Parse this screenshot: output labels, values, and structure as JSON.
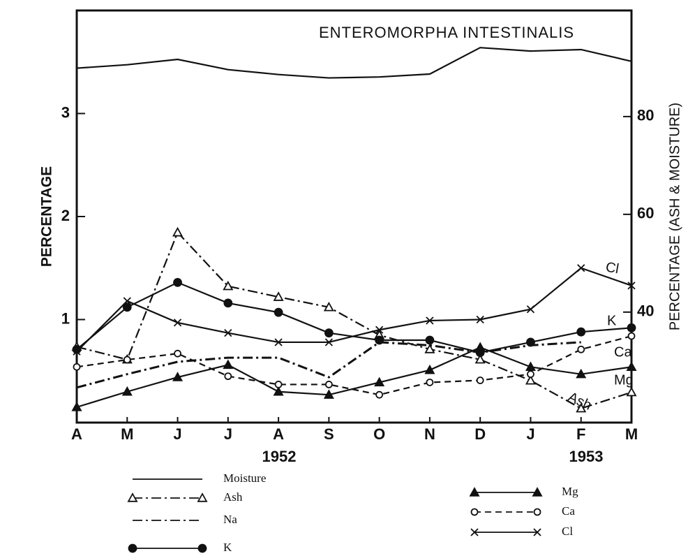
{
  "chart_data": {
    "type": "line",
    "title": "ENTEROMORPHA INTESTINALIS",
    "ylabel": "PERCENTAGE",
    "y2label": "PERCENTAGE (ASH & MOISTURE)",
    "annotations": [
      "1952",
      "1953"
    ],
    "categories": [
      "A",
      "M",
      "J",
      "J",
      "A",
      "S",
      "O",
      "N",
      "D",
      "J",
      "F",
      "M"
    ],
    "ylim": [
      0,
      4
    ],
    "yticks": [
      1,
      2,
      3
    ],
    "y2lim": [
      17.4,
      101.7
    ],
    "y2ticks": [
      40,
      60,
      80
    ],
    "series": [
      {
        "name": "Moisture",
        "color": "#111111",
        "axis": "y2",
        "dash": "solid",
        "marker": "none",
        "values": [
          89.9,
          90.6,
          91.7,
          89.6,
          88.6,
          87.9,
          88.1,
          88.7,
          94.1,
          93.4,
          93.7,
          91.3
        ]
      },
      {
        "name": "Ash",
        "color": "#111111",
        "axis": "y2",
        "dash": "dash-dot",
        "marker": "triangle-open",
        "values": [
          32.9,
          30.3,
          56.3,
          45.3,
          43.1,
          41.0,
          35.3,
          32.4,
          30.3,
          26.0,
          20.3,
          23.6
        ]
      },
      {
        "name": "Na",
        "color": "#111111",
        "dash": "dash-dot",
        "marker": "none",
        "values": [
          0.34,
          0.47,
          0.59,
          0.63,
          0.63,
          0.44,
          0.78,
          0.75,
          0.68,
          0.75,
          0.78,
          null
        ]
      },
      {
        "name": "K",
        "color": "#111111",
        "dash": "solid",
        "marker": "circle-filled",
        "values": [
          0.71,
          1.12,
          1.36,
          1.16,
          1.07,
          0.87,
          0.8,
          0.8,
          0.68,
          0.78,
          0.88,
          0.92
        ]
      },
      {
        "name": "Mg",
        "color": "#111111",
        "dash": "solid",
        "marker": "triangle-filled",
        "values": [
          0.15,
          0.3,
          0.44,
          0.56,
          0.3,
          0.27,
          0.39,
          0.51,
          0.73,
          0.54,
          0.47,
          0.54
        ]
      },
      {
        "name": "Ca",
        "color": "#111111",
        "dash": "dashed",
        "marker": "circle-open",
        "values": [
          0.54,
          0.61,
          0.67,
          0.45,
          0.37,
          0.37,
          0.27,
          0.39,
          0.41,
          0.47,
          0.71,
          0.84
        ]
      },
      {
        "name": "Cl",
        "color": "#111111",
        "dash": "solid",
        "marker": "x",
        "values": [
          0.69,
          1.18,
          0.97,
          0.87,
          0.78,
          0.78,
          0.9,
          0.99,
          1.0,
          1.1,
          1.5,
          1.33
        ]
      }
    ]
  }
}
